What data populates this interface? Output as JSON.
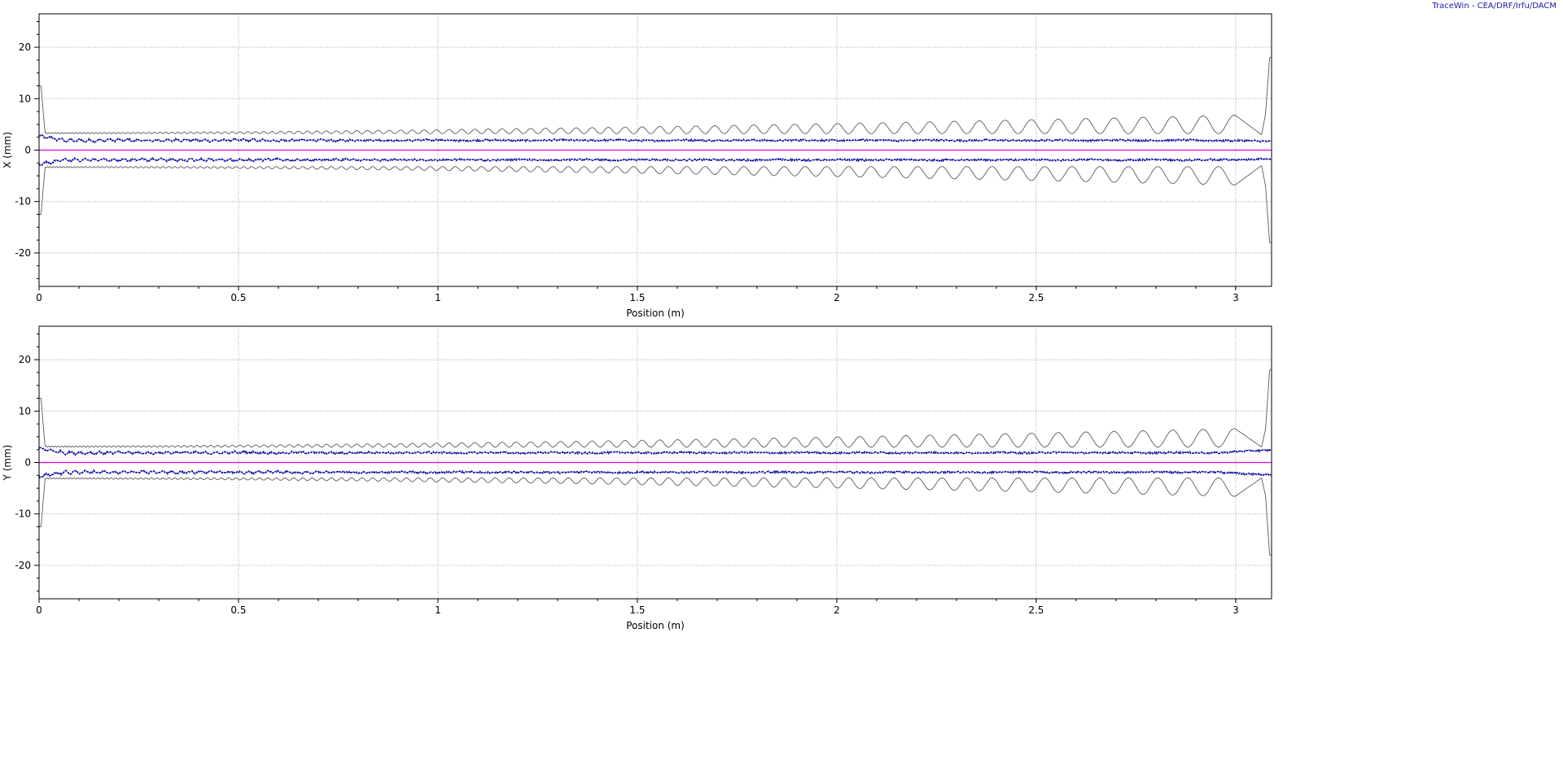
{
  "credit": "TraceWin - CEA/DRF/Irfu/DACM",
  "colors": {
    "envelope": "#5a5a5a",
    "rms": "#0a0aa0",
    "centroid": "#e000e0",
    "grid": "#a0a0a0"
  },
  "chart_data": [
    {
      "type": "line",
      "xlabel": "Position (m)",
      "ylabel": "X (mm)",
      "xlim": [
        0,
        3.09
      ],
      "ylim": [
        -26.5,
        26.5
      ],
      "x_ticks": [
        0,
        0.5,
        1,
        1.5,
        2,
        2.5,
        3
      ],
      "x_tick_labels": [
        "0",
        "0.5",
        "1",
        "1.5",
        "2",
        "2.5",
        "3"
      ],
      "y_ticks": [
        20,
        10,
        0,
        -10,
        -20
      ],
      "y_tick_labels": [
        "20",
        "10",
        "0",
        "-10",
        "-20"
      ],
      "grid": true,
      "series": [
        {
          "role": "max-envelope",
          "color": "envelope",
          "start_value": 12.5,
          "body_value": 3.2,
          "osc_start_amplitude": 0.1,
          "osc_end_amplitude": 1.8,
          "osc_period_start": 0.0075,
          "osc_period_end": 0.079,
          "exit_values": [
            3.0,
            7.0,
            18.0
          ]
        },
        {
          "role": "rms-envelope",
          "color": "rms",
          "body_value": 1.9,
          "start_value": 2.7,
          "end_value": 1.7
        },
        {
          "role": "centroid",
          "color": "centroid",
          "value": 0
        }
      ]
    },
    {
      "type": "line",
      "xlabel": "Position (m)",
      "ylabel": "Y (mm)",
      "xlim": [
        0,
        3.09
      ],
      "ylim": [
        -26.5,
        26.5
      ],
      "x_ticks": [
        0,
        0.5,
        1,
        1.5,
        2,
        2.5,
        3
      ],
      "x_tick_labels": [
        "0",
        "0.5",
        "1",
        "1.5",
        "2",
        "2.5",
        "3"
      ],
      "y_ticks": [
        20,
        10,
        0,
        -10,
        -20
      ],
      "y_tick_labels": [
        "20",
        "10",
        "0",
        "-10",
        "-20"
      ],
      "grid": true,
      "series": [
        {
          "role": "max-envelope",
          "color": "envelope",
          "start_value": 12.5,
          "body_value": 3.0,
          "osc_start_amplitude": 0.1,
          "osc_end_amplitude": 1.8,
          "osc_period_start": 0.0075,
          "osc_period_end": 0.079,
          "exit_values": [
            3.0,
            6.5,
            18.0
          ]
        },
        {
          "role": "rms-envelope",
          "color": "rms",
          "body_value": 1.9,
          "start_value": 2.7,
          "end_value": 2.4
        },
        {
          "role": "centroid",
          "color": "centroid",
          "value": 0
        }
      ]
    }
  ]
}
